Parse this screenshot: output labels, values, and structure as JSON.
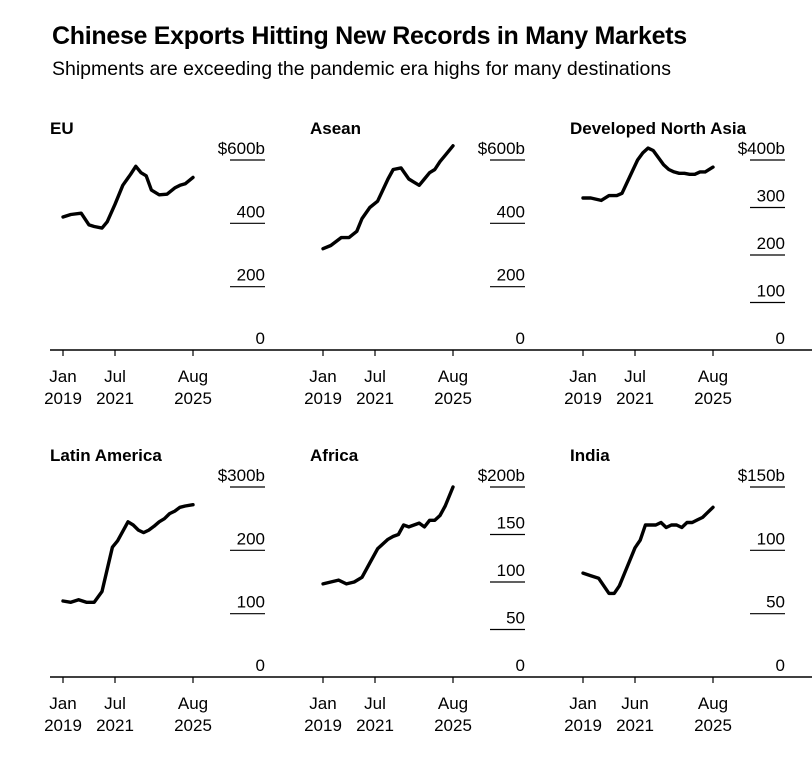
{
  "header": {
    "title": "Chinese Exports Hitting New Records in Many Markets",
    "subtitle": "Shipments are exceeding the pandemic era highs for many destinations"
  },
  "style": {
    "line_color": "#000000",
    "axis_color": "#000000",
    "background": "#ffffff"
  },
  "chart_data": [
    {
      "type": "line",
      "title": "EU",
      "unit_prefix": "$",
      "unit_suffix": "b",
      "ylim": [
        0,
        600
      ],
      "yticks": [
        0,
        200,
        400,
        600
      ],
      "ytick_labels": [
        "0",
        "200",
        "400",
        "$600b"
      ],
      "xlim": [
        0,
        1
      ],
      "xticks": [
        0.05,
        0.25,
        0.55
      ],
      "xtick_labels": [
        [
          "Jan",
          "2019"
        ],
        [
          "Jul",
          "2021"
        ],
        [
          "Aug",
          "2025"
        ]
      ],
      "series": [
        {
          "name": "EU",
          "x": [
            0.05,
            0.08,
            0.12,
            0.15,
            0.17,
            0.2,
            0.22,
            0.25,
            0.28,
            0.31,
            0.33,
            0.35,
            0.37,
            0.39,
            0.42,
            0.45,
            0.48,
            0.5,
            0.52,
            0.55
          ],
          "values": [
            420,
            428,
            432,
            395,
            390,
            385,
            405,
            460,
            520,
            555,
            580,
            560,
            550,
            505,
            490,
            492,
            512,
            520,
            525,
            545
          ]
        }
      ]
    },
    {
      "type": "line",
      "title": "Asean",
      "unit_prefix": "$",
      "unit_suffix": "b",
      "ylim": [
        0,
        600
      ],
      "yticks": [
        0,
        200,
        400,
        600
      ],
      "ytick_labels": [
        "0",
        "200",
        "400",
        "$600b"
      ],
      "xlim": [
        0,
        1
      ],
      "xticks": [
        0.05,
        0.25,
        0.55
      ],
      "xtick_labels": [
        [
          "Jan",
          "2019"
        ],
        [
          "Jul",
          "2021"
        ],
        [
          "Aug",
          "2025"
        ]
      ],
      "series": [
        {
          "name": "Asean",
          "x": [
            0.05,
            0.08,
            0.12,
            0.15,
            0.18,
            0.2,
            0.23,
            0.26,
            0.28,
            0.3,
            0.32,
            0.35,
            0.38,
            0.4,
            0.42,
            0.44,
            0.46,
            0.48,
            0.5,
            0.52,
            0.55
          ],
          "values": [
            320,
            330,
            355,
            355,
            375,
            415,
            450,
            470,
            505,
            540,
            570,
            575,
            540,
            530,
            520,
            540,
            560,
            570,
            595,
            615,
            645
          ]
        }
      ]
    },
    {
      "type": "line",
      "title": "Developed North Asia",
      "unit_prefix": "$",
      "unit_suffix": "b",
      "ylim": [
        0,
        400
      ],
      "yticks": [
        0,
        100,
        200,
        300,
        400
      ],
      "ytick_labels": [
        "0",
        "100",
        "200",
        "300",
        "$400b"
      ],
      "xlim": [
        0,
        1
      ],
      "xticks": [
        0.05,
        0.25,
        0.55
      ],
      "xtick_labels": [
        [
          "Jan",
          "2019"
        ],
        [
          "Jul",
          "2021"
        ],
        [
          "Aug",
          "2025"
        ]
      ],
      "series": [
        {
          "name": "Developed North Asia",
          "x": [
            0.05,
            0.08,
            0.12,
            0.15,
            0.18,
            0.2,
            0.23,
            0.26,
            0.28,
            0.3,
            0.32,
            0.34,
            0.36,
            0.38,
            0.4,
            0.42,
            0.44,
            0.46,
            0.48,
            0.5,
            0.52,
            0.55
          ],
          "values": [
            320,
            320,
            315,
            325,
            325,
            330,
            365,
            400,
            415,
            425,
            420,
            405,
            390,
            380,
            375,
            372,
            372,
            370,
            370,
            375,
            375,
            385
          ]
        }
      ]
    },
    {
      "type": "line",
      "title": "Latin America",
      "unit_prefix": "$",
      "unit_suffix": "b",
      "ylim": [
        0,
        300
      ],
      "yticks": [
        0,
        100,
        200,
        300
      ],
      "ytick_labels": [
        "0",
        "100",
        "200",
        "$300b"
      ],
      "xlim": [
        0,
        1
      ],
      "xticks": [
        0.05,
        0.25,
        0.55
      ],
      "xtick_labels": [
        [
          "Jan",
          "2019"
        ],
        [
          "Jul",
          "2021"
        ],
        [
          "Aug",
          "2025"
        ]
      ],
      "series": [
        {
          "name": "Latin America",
          "x": [
            0.05,
            0.08,
            0.11,
            0.14,
            0.17,
            0.2,
            0.22,
            0.24,
            0.26,
            0.28,
            0.3,
            0.32,
            0.34,
            0.36,
            0.38,
            0.4,
            0.42,
            0.44,
            0.46,
            0.48,
            0.5,
            0.52,
            0.55
          ],
          "values": [
            120,
            118,
            122,
            118,
            118,
            135,
            170,
            205,
            215,
            230,
            245,
            240,
            232,
            228,
            232,
            238,
            245,
            250,
            258,
            262,
            268,
            270,
            272
          ]
        }
      ]
    },
    {
      "type": "line",
      "title": "Africa",
      "unit_prefix": "$",
      "unit_suffix": "b",
      "ylim": [
        0,
        200
      ],
      "yticks": [
        0,
        50,
        100,
        150,
        200
      ],
      "ytick_labels": [
        "0",
        "50",
        "100",
        "150",
        "$200b"
      ],
      "xlim": [
        0,
        1
      ],
      "xticks": [
        0.05,
        0.25,
        0.55
      ],
      "xtick_labels": [
        [
          "Jan",
          "2019"
        ],
        [
          "Jul",
          "2021"
        ],
        [
          "Aug",
          "2025"
        ]
      ],
      "series": [
        {
          "name": "Africa",
          "x": [
            0.05,
            0.08,
            0.11,
            0.14,
            0.17,
            0.2,
            0.23,
            0.26,
            0.28,
            0.3,
            0.32,
            0.34,
            0.36,
            0.38,
            0.4,
            0.42,
            0.44,
            0.46,
            0.48,
            0.5,
            0.52,
            0.55
          ],
          "values": [
            98,
            100,
            102,
            98,
            100,
            105,
            120,
            135,
            140,
            145,
            148,
            150,
            160,
            158,
            160,
            162,
            158,
            165,
            165,
            170,
            180,
            200
          ]
        }
      ]
    },
    {
      "type": "line",
      "title": "India",
      "unit_prefix": "$",
      "unit_suffix": "b",
      "ylim": [
        0,
        150
      ],
      "yticks": [
        0,
        50,
        100,
        150
      ],
      "ytick_labels": [
        "0",
        "50",
        "100",
        "$150b"
      ],
      "xlim": [
        0,
        1
      ],
      "xticks": [
        0.05,
        0.25,
        0.55
      ],
      "xtick_labels": [
        [
          "Jan",
          "2019"
        ],
        [
          "Jun",
          "2021"
        ],
        [
          "Aug",
          "2025"
        ]
      ],
      "series": [
        {
          "name": "India",
          "x": [
            0.05,
            0.08,
            0.11,
            0.13,
            0.15,
            0.17,
            0.19,
            0.21,
            0.23,
            0.25,
            0.27,
            0.29,
            0.31,
            0.33,
            0.35,
            0.37,
            0.39,
            0.41,
            0.43,
            0.45,
            0.47,
            0.49,
            0.51,
            0.53,
            0.55
          ],
          "values": [
            82,
            80,
            78,
            72,
            66,
            66,
            72,
            82,
            92,
            102,
            108,
            120,
            120,
            120,
            122,
            118,
            120,
            120,
            118,
            122,
            122,
            124,
            126,
            130,
            134
          ]
        }
      ]
    }
  ]
}
